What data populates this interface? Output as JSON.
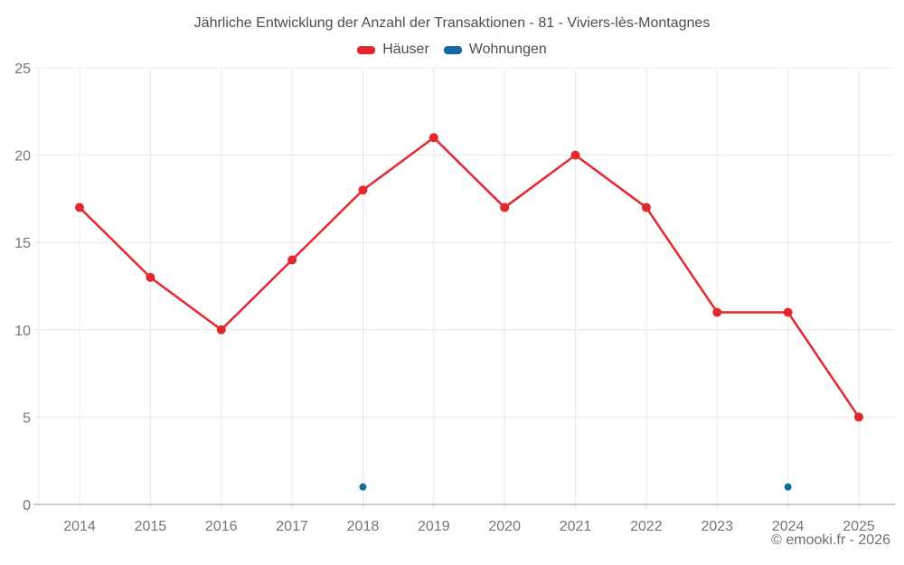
{
  "chart_data": {
    "type": "line",
    "title": "Jährliche Entwicklung der Anzahl der Transaktionen - 81 - Viviers-lès-Montagnes",
    "x": [
      2014,
      2015,
      2016,
      2017,
      2018,
      2019,
      2020,
      2021,
      2022,
      2023,
      2024,
      2025
    ],
    "series": [
      {
        "name": "Häuser",
        "color": "#e2282d",
        "values": [
          17,
          13,
          10,
          14,
          18,
          21,
          17,
          20,
          17,
          11,
          11,
          5
        ]
      },
      {
        "name": "Wohnungen",
        "color": "#15699e",
        "values": [
          null,
          null,
          null,
          null,
          1,
          null,
          null,
          null,
          null,
          null,
          1,
          null
        ]
      }
    ],
    "ylim": [
      0,
      25
    ],
    "yticks": [
      0,
      5,
      10,
      15,
      20,
      25
    ],
    "grid": true,
    "legend_position": "top"
  },
  "footer": {
    "copyright": "© emooki.fr - 2026"
  }
}
